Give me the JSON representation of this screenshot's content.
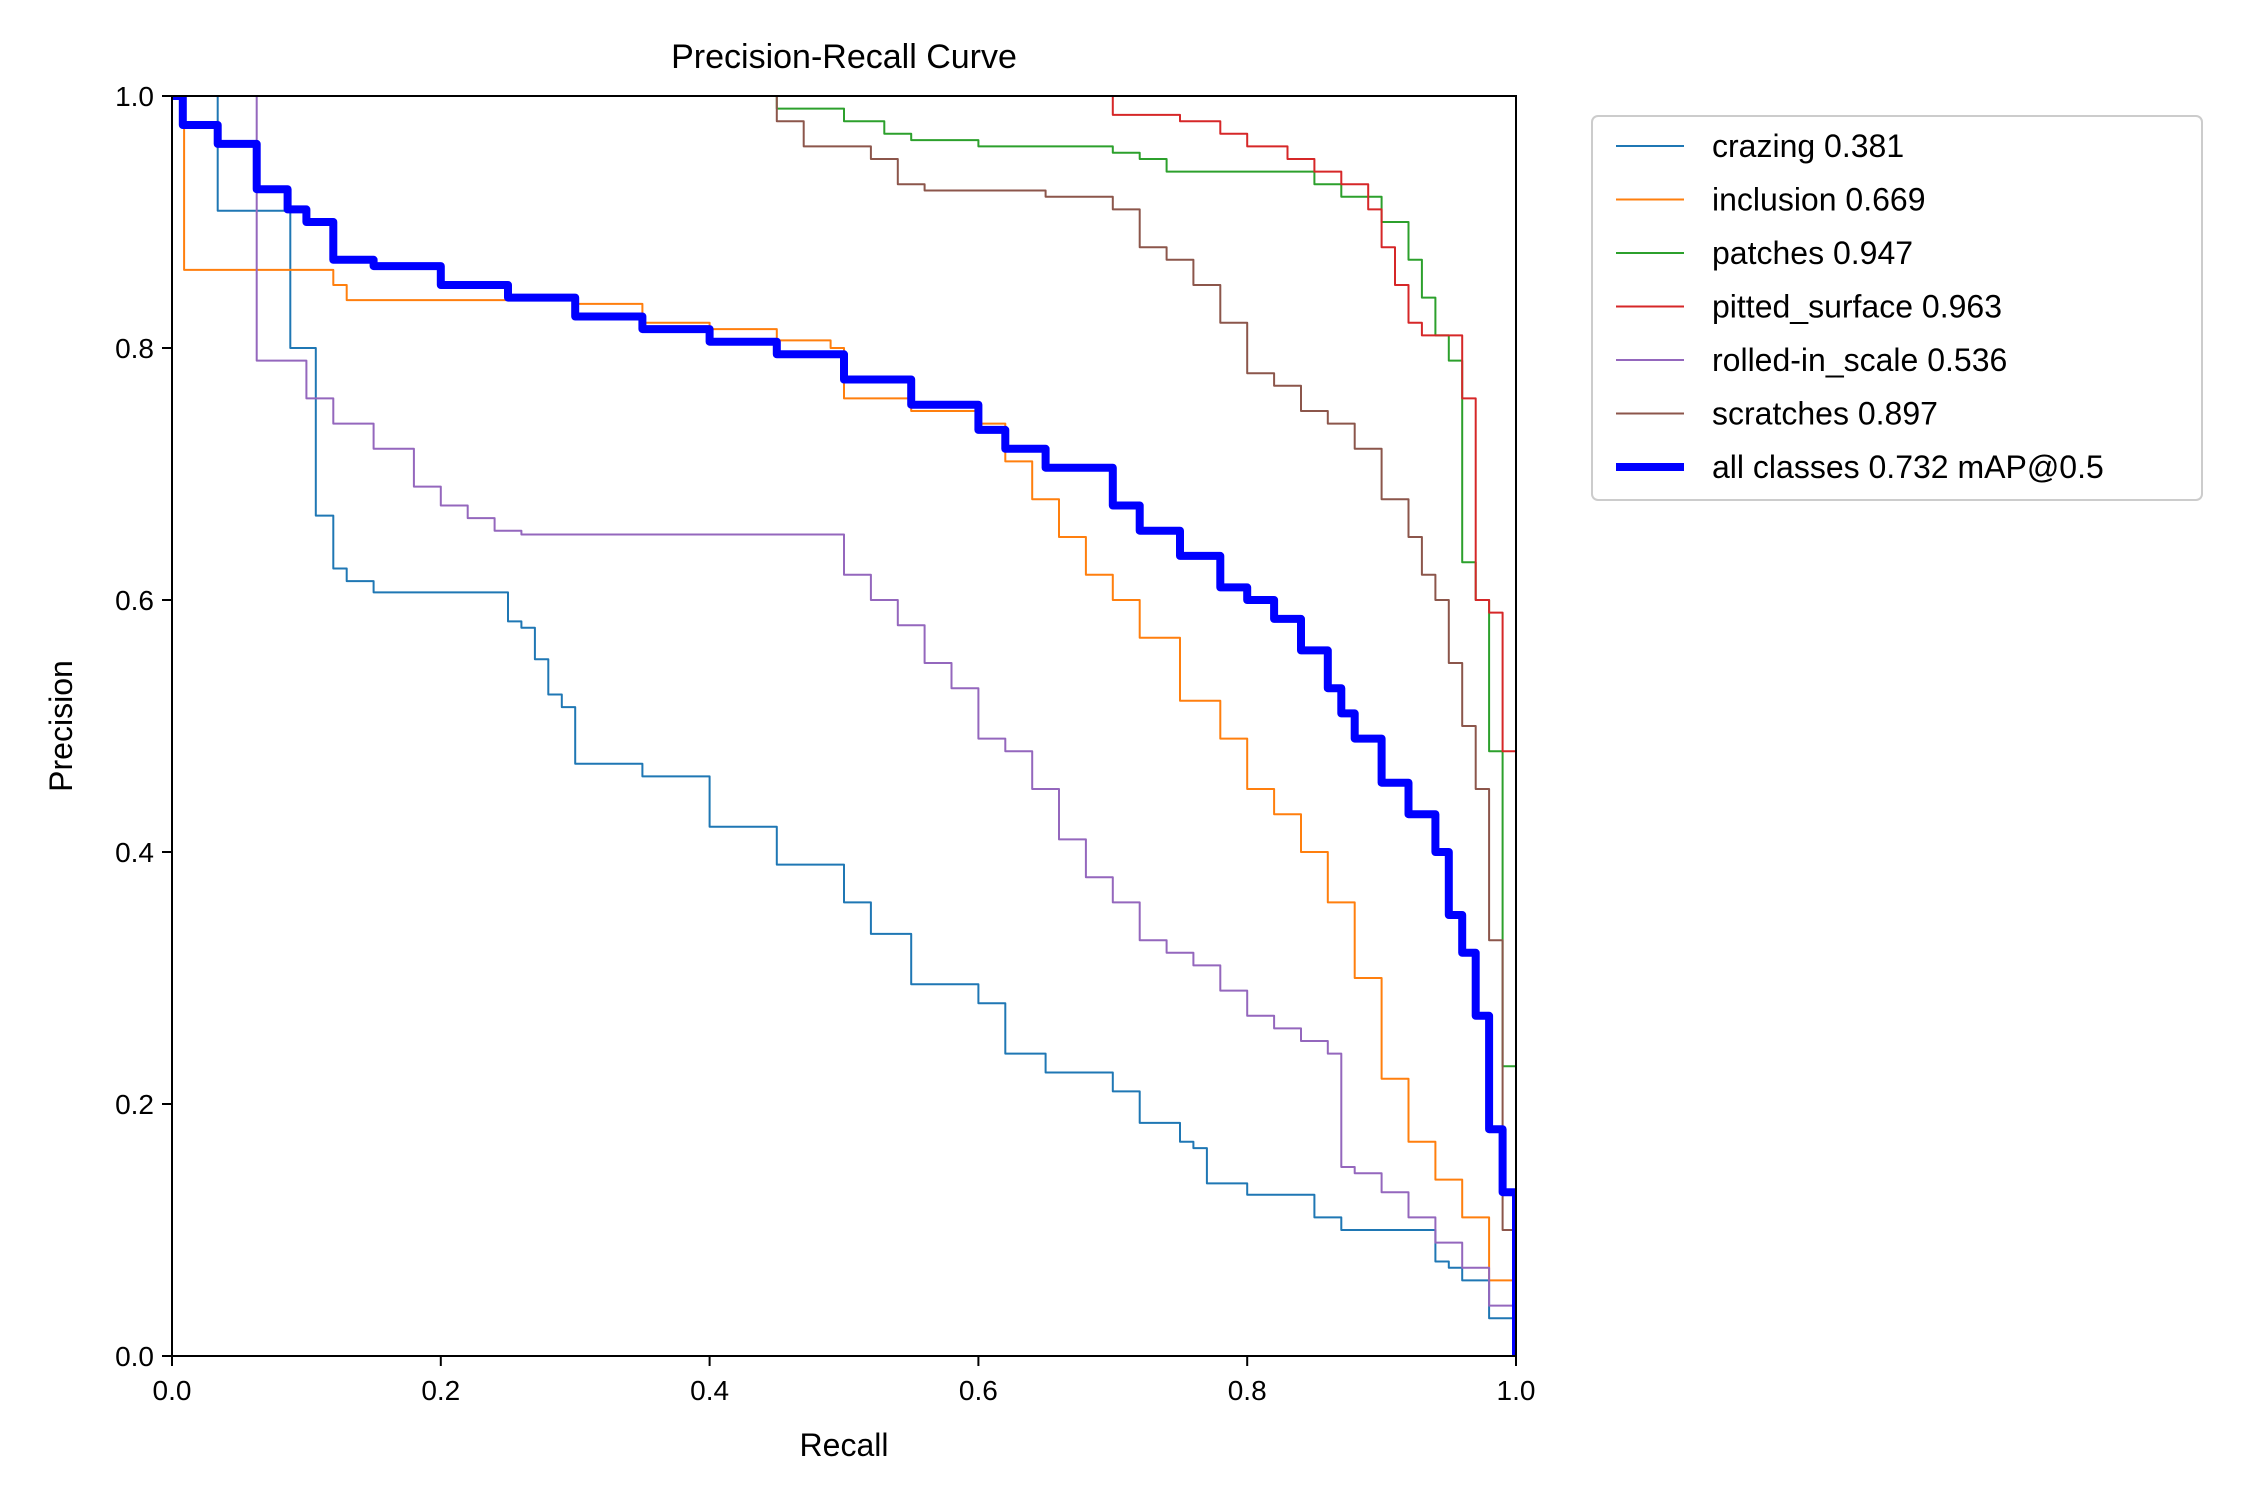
{
  "chart_data": {
    "type": "line",
    "title": "Precision-Recall Curve",
    "xlabel": "Recall",
    "ylabel": "Precision",
    "xlim": [
      0.0,
      1.0
    ],
    "ylim": [
      0.0,
      1.0
    ],
    "xticks": [
      "0.0",
      "0.2",
      "0.4",
      "0.6",
      "0.8",
      "1.0"
    ],
    "yticks": [
      "0.0",
      "0.2",
      "0.4",
      "0.6",
      "0.8",
      "1.0"
    ],
    "grid": false,
    "legend_placement": "outside-top-right",
    "series": [
      {
        "name": "crazing 0.381",
        "color": "#1f77b4",
        "x": [
          0.0,
          0.03,
          0.034,
          0.085,
          0.088,
          0.102,
          0.107,
          0.11,
          0.12,
          0.13,
          0.15,
          0.2,
          0.25,
          0.26,
          0.27,
          0.28,
          0.29,
          0.3,
          0.35,
          0.4,
          0.45,
          0.5,
          0.52,
          0.55,
          0.6,
          0.62,
          0.65,
          0.7,
          0.72,
          0.75,
          0.76,
          0.77,
          0.8,
          0.85,
          0.87,
          0.9,
          0.93,
          0.94,
          0.95,
          0.96,
          0.98,
          1.0
        ],
        "y": [
          1.0,
          1.0,
          0.909,
          0.909,
          0.8,
          0.8,
          0.667,
          0.667,
          0.625,
          0.615,
          0.606,
          0.606,
          0.583,
          0.578,
          0.553,
          0.525,
          0.515,
          0.47,
          0.46,
          0.42,
          0.39,
          0.36,
          0.335,
          0.295,
          0.28,
          0.24,
          0.225,
          0.21,
          0.185,
          0.17,
          0.165,
          0.137,
          0.128,
          0.11,
          0.1,
          0.1,
          0.1,
          0.075,
          0.07,
          0.06,
          0.03,
          0.0
        ]
      },
      {
        "name": "inclusion 0.669",
        "color": "#ff7f0e",
        "x": [
          0.0,
          0.006,
          0.009,
          0.11,
          0.12,
          0.13,
          0.25,
          0.3,
          0.35,
          0.4,
          0.45,
          0.49,
          0.5,
          0.55,
          0.6,
          0.62,
          0.64,
          0.66,
          0.68,
          0.7,
          0.72,
          0.75,
          0.78,
          0.8,
          0.82,
          0.84,
          0.86,
          0.88,
          0.9,
          0.92,
          0.94,
          0.96,
          0.98,
          1.0
        ],
        "y": [
          1.0,
          1.0,
          0.862,
          0.862,
          0.85,
          0.838,
          0.838,
          0.835,
          0.82,
          0.815,
          0.806,
          0.8,
          0.76,
          0.75,
          0.74,
          0.71,
          0.68,
          0.65,
          0.62,
          0.6,
          0.57,
          0.52,
          0.49,
          0.45,
          0.43,
          0.4,
          0.36,
          0.3,
          0.22,
          0.17,
          0.14,
          0.11,
          0.06,
          0.0
        ]
      },
      {
        "name": "patches 0.947",
        "color": "#2ca02c",
        "x": [
          0.34,
          0.34,
          0.45,
          0.5,
          0.53,
          0.55,
          0.6,
          0.7,
          0.72,
          0.74,
          0.76,
          0.8,
          0.85,
          0.87,
          0.9,
          0.92,
          0.93,
          0.94,
          0.95,
          0.96,
          0.97,
          0.98,
          0.99,
          1.0
        ],
        "y": [
          1.0,
          1.0,
          0.99,
          0.98,
          0.97,
          0.965,
          0.96,
          0.955,
          0.95,
          0.94,
          0.94,
          0.94,
          0.93,
          0.92,
          0.9,
          0.87,
          0.84,
          0.81,
          0.79,
          0.63,
          0.6,
          0.48,
          0.23,
          0.0
        ]
      },
      {
        "name": "pitted_surface 0.963",
        "color": "#d62728",
        "x": [
          0.7,
          0.7,
          0.75,
          0.78,
          0.8,
          0.83,
          0.85,
          0.87,
          0.89,
          0.9,
          0.91,
          0.92,
          0.93,
          0.94,
          0.95,
          0.96,
          0.97,
          0.98,
          0.99,
          1.0
        ],
        "y": [
          1.0,
          0.985,
          0.98,
          0.97,
          0.96,
          0.95,
          0.94,
          0.93,
          0.91,
          0.88,
          0.85,
          0.82,
          0.81,
          0.81,
          0.81,
          0.76,
          0.6,
          0.59,
          0.48,
          0.0
        ]
      },
      {
        "name": "rolled-in_scale 0.536",
        "color": "#9467bd",
        "x": [
          0.0,
          0.062,
          0.063,
          0.09,
          0.1,
          0.12,
          0.15,
          0.18,
          0.2,
          0.22,
          0.24,
          0.26,
          0.3,
          0.35,
          0.4,
          0.48,
          0.5,
          0.52,
          0.54,
          0.56,
          0.58,
          0.6,
          0.62,
          0.64,
          0.66,
          0.68,
          0.7,
          0.72,
          0.74,
          0.76,
          0.78,
          0.8,
          0.82,
          0.84,
          0.86,
          0.87,
          0.88,
          0.9,
          0.92,
          0.94,
          0.96,
          0.98,
          1.0
        ],
        "y": [
          1.0,
          1.0,
          0.79,
          0.79,
          0.76,
          0.74,
          0.72,
          0.69,
          0.675,
          0.665,
          0.655,
          0.652,
          0.652,
          0.652,
          0.652,
          0.652,
          0.62,
          0.6,
          0.58,
          0.55,
          0.53,
          0.49,
          0.48,
          0.45,
          0.41,
          0.38,
          0.36,
          0.33,
          0.32,
          0.31,
          0.29,
          0.27,
          0.26,
          0.25,
          0.24,
          0.15,
          0.145,
          0.13,
          0.11,
          0.09,
          0.07,
          0.04,
          0.0
        ]
      },
      {
        "name": "scratches 0.897",
        "color": "#8c564b",
        "x": [
          0.45,
          0.45,
          0.47,
          0.5,
          0.52,
          0.54,
          0.56,
          0.6,
          0.65,
          0.7,
          0.72,
          0.74,
          0.76,
          0.78,
          0.8,
          0.82,
          0.84,
          0.86,
          0.88,
          0.9,
          0.92,
          0.93,
          0.94,
          0.95,
          0.96,
          0.97,
          0.98,
          0.99,
          1.0
        ],
        "y": [
          1.0,
          0.98,
          0.96,
          0.96,
          0.95,
          0.93,
          0.925,
          0.925,
          0.92,
          0.91,
          0.88,
          0.87,
          0.85,
          0.82,
          0.78,
          0.77,
          0.75,
          0.74,
          0.72,
          0.68,
          0.65,
          0.62,
          0.6,
          0.55,
          0.5,
          0.45,
          0.33,
          0.1,
          0.0
        ]
      },
      {
        "name": "all classes 0.732 mAP@0.5",
        "color": "#0000ff",
        "bold": true,
        "x": [
          0.0,
          0.004,
          0.008,
          0.03,
          0.034,
          0.06,
          0.063,
          0.08,
          0.086,
          0.1,
          0.12,
          0.15,
          0.2,
          0.25,
          0.3,
          0.35,
          0.4,
          0.45,
          0.5,
          0.55,
          0.6,
          0.62,
          0.65,
          0.7,
          0.72,
          0.75,
          0.78,
          0.8,
          0.82,
          0.84,
          0.86,
          0.87,
          0.88,
          0.9,
          0.92,
          0.94,
          0.95,
          0.96,
          0.97,
          0.98,
          0.99,
          1.0
        ],
        "y": [
          1.0,
          1.0,
          0.977,
          0.977,
          0.962,
          0.962,
          0.926,
          0.926,
          0.91,
          0.9,
          0.87,
          0.865,
          0.85,
          0.84,
          0.825,
          0.815,
          0.805,
          0.795,
          0.775,
          0.755,
          0.735,
          0.72,
          0.705,
          0.675,
          0.655,
          0.635,
          0.61,
          0.6,
          0.585,
          0.56,
          0.53,
          0.51,
          0.49,
          0.455,
          0.43,
          0.4,
          0.35,
          0.32,
          0.27,
          0.18,
          0.13,
          0.0
        ]
      }
    ]
  }
}
